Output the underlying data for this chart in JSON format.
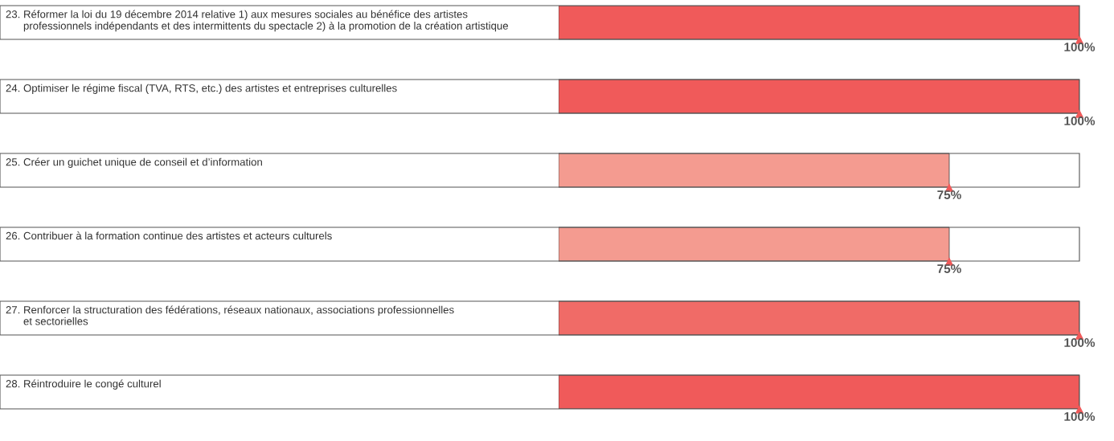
{
  "chart_data": {
    "type": "bar",
    "orientation": "horizontal",
    "categories": [
      "23. Réformer la loi du 19 décembre 2014 relative 1) aux mesures sociales au bénéfice des artistes\n      professionnels indépendants et des intermittents du spectacle 2) à la promotion de la création artistique",
      "24. Optimiser le régime fiscal (TVA, RTS, etc.) des artistes et entreprises culturelles",
      "25. Créer un guichet unique de conseil et d’information",
      "26. Contribuer à la formation continue des artistes et acteurs culturels",
      "27. Renforcer la structuration des fédérations, réseaux nationaux, associations professionnelles\n      et sectorielles",
      "28. Réintroduire le congé culturel"
    ],
    "values": [
      100,
      100,
      75,
      75,
      100,
      100
    ],
    "colors": [
      "#f05a5a",
      "#f05a5a",
      "#f49b90",
      "#f49b90",
      "#f06b67",
      "#f05a5a"
    ],
    "value_labels": [
      "100%",
      "100%",
      "75%",
      "75%",
      "100%",
      "100%"
    ],
    "tick_labels": false
  }
}
